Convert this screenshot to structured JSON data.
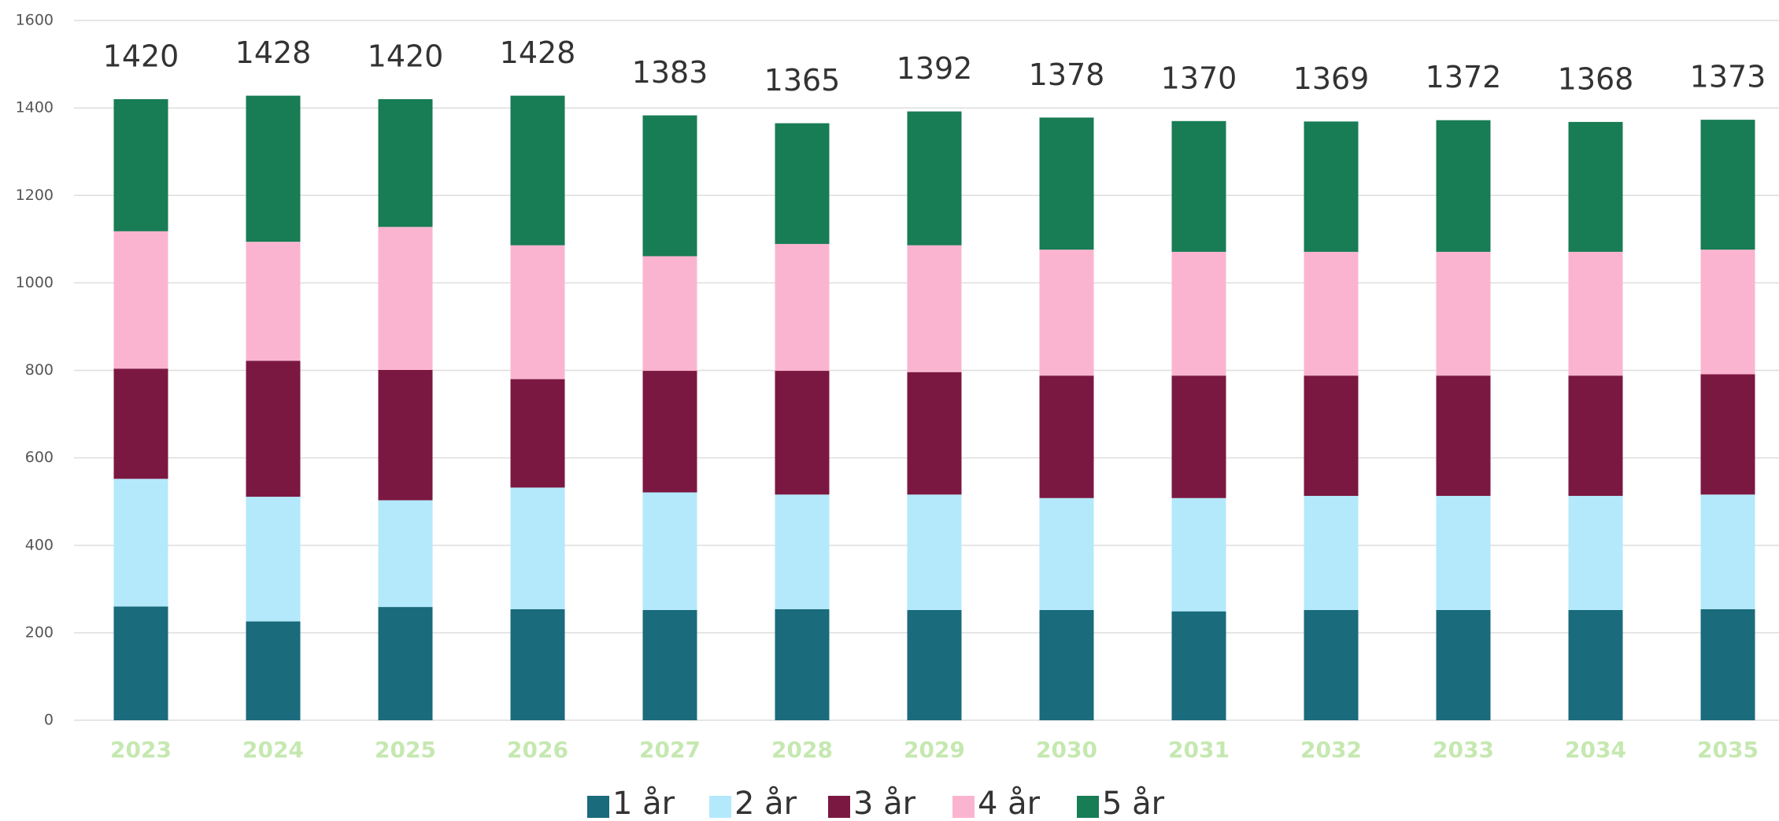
{
  "chart_data": {
    "type": "stacked_bar",
    "categories": [
      "2023",
      "2024",
      "2025",
      "2026",
      "2027",
      "2028",
      "2029",
      "2030",
      "2031",
      "2032",
      "2033",
      "2034",
      "2035"
    ],
    "series": [
      {
        "name": "1 år",
        "color": "#1a6b7c",
        "values": [
          260,
          226,
          259,
          254,
          252,
          254,
          252,
          252,
          249,
          252,
          252,
          252,
          254
        ]
      },
      {
        "name": "2 år",
        "color": "#b3e9fb",
        "values": [
          292,
          285,
          244,
          278,
          269,
          262,
          264,
          256,
          259,
          261,
          261,
          261,
          262
        ]
      },
      {
        "name": "3 år",
        "color": "#7b1842",
        "values": [
          252,
          311,
          298,
          248,
          278,
          283,
          280,
          280,
          280,
          275,
          275,
          275,
          275
        ]
      },
      {
        "name": "4 år",
        "color": "#fbb4cf",
        "values": [
          314,
          272,
          327,
          306,
          262,
          290,
          290,
          288,
          283,
          283,
          283,
          283,
          285
        ]
      },
      {
        "name": "5 år",
        "color": "#187c55",
        "values": [
          302,
          334,
          292,
          342,
          322,
          276,
          306,
          302,
          299,
          298,
          301,
          297,
          297
        ]
      }
    ],
    "totals": [
      1420,
      1428,
      1420,
      1428,
      1383,
      1365,
      1392,
      1378,
      1370,
      1369,
      1372,
      1368,
      1373
    ],
    "ylim": [
      0,
      1600
    ],
    "yticks": [
      0,
      200,
      400,
      600,
      800,
      1000,
      1200,
      1400,
      1600
    ],
    "grid": true,
    "legend": "bottom"
  }
}
